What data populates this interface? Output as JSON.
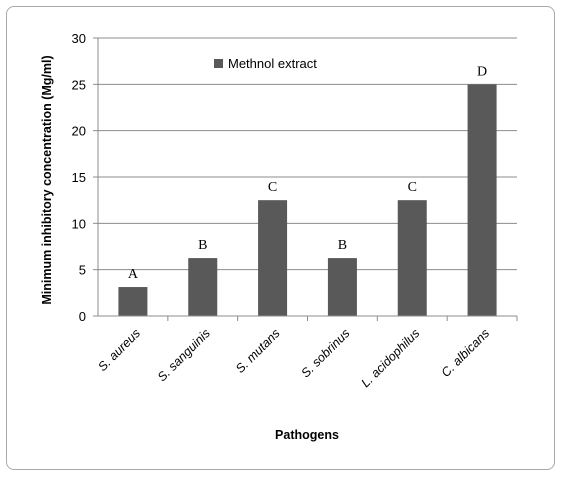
{
  "chart_data": {
    "type": "bar",
    "xlabel": "Pathogens",
    "ylabel": "Minimum inhibitory concentration (Mg/ml)",
    "ylim": [
      0,
      30
    ],
    "yticks": [
      "0",
      "5",
      "10",
      "15",
      "20",
      "25",
      "30"
    ],
    "grid": true,
    "legend_position": "top-center",
    "categories": [
      "S. aureus",
      "S. sanguinis",
      "S. mutans",
      "S. sobrinus",
      "L. acidophilus",
      "C. albicans"
    ],
    "series": [
      {
        "name": "Methnol extract",
        "color": "#595959",
        "values": [
          3.125,
          6.25,
          12.5,
          6.25,
          12.5,
          25
        ]
      }
    ],
    "annotations": [
      "A",
      "B",
      "C",
      "B",
      "C",
      "D"
    ]
  }
}
